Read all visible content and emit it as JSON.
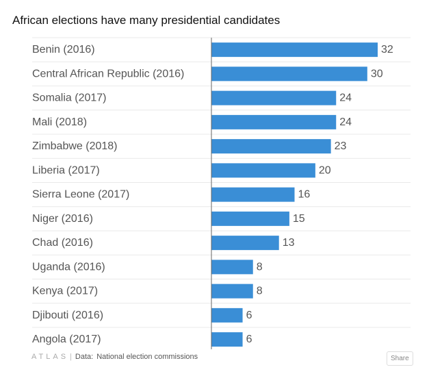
{
  "chart_data": {
    "type": "bar",
    "orientation": "horizontal",
    "title": "African elections have many presidential candidates",
    "categories": [
      "Benin (2016)",
      "Central African Republic (2016)",
      "Somalia (2017)",
      "Mali (2018)",
      "Zimbabwe (2018)",
      "Liberia (2017)",
      "Sierra Leone (2017)",
      "Niger (2016)",
      "Chad (2016)",
      "Uganda (2016)",
      "Kenya (2017)",
      "Djibouti (2016)",
      "Angola (2017)"
    ],
    "values": [
      32,
      30,
      24,
      24,
      23,
      20,
      16,
      15,
      13,
      8,
      8,
      6,
      6
    ],
    "xlim": [
      0,
      32
    ],
    "grid": true,
    "bar_color": "#3a8ed6"
  },
  "footer": {
    "brand": "ATLAS",
    "source_prefix": "Data:",
    "source": "National election commissions",
    "share_label": "Share"
  }
}
